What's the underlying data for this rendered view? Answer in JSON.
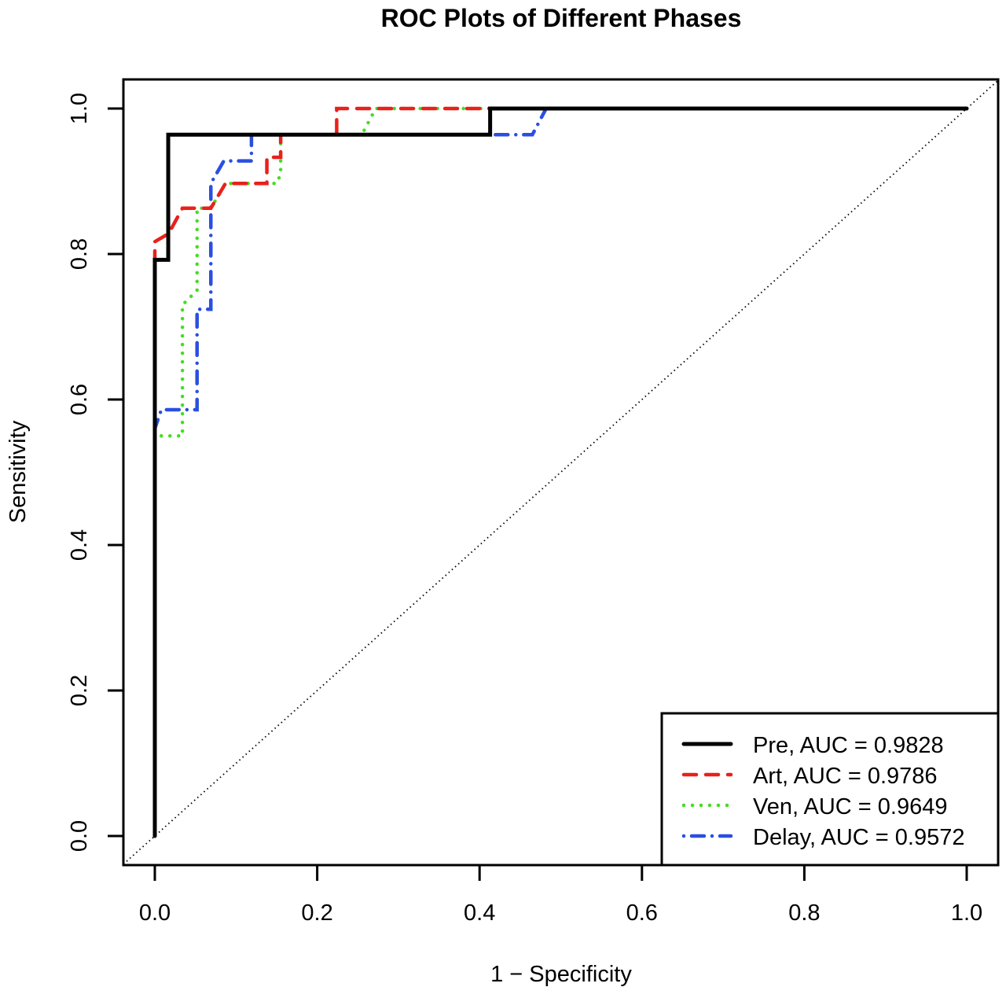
{
  "chart_data": {
    "type": "line",
    "title": "ROC Plots of Different Phases",
    "xlabel": "1 − Specificity",
    "ylabel": "Sensitivity",
    "xlim": [
      0,
      1
    ],
    "ylim": [
      0,
      1
    ],
    "xticks": [
      "0.0",
      "0.2",
      "0.4",
      "0.6",
      "0.8",
      "1.0"
    ],
    "yticks": [
      "0.0",
      "0.2",
      "0.4",
      "0.6",
      "0.8",
      "1.0"
    ],
    "grid": false,
    "legend_position": "bottom-right",
    "reference_line": {
      "from": [
        0,
        0
      ],
      "to": [
        1,
        1
      ],
      "style": "dotted",
      "color": "#000000"
    },
    "series": [
      {
        "name": "Pre, AUC = 0.9828",
        "color": "#000000",
        "style": "solid",
        "x": [
          0,
          0,
          0.0165,
          0.0165,
          0.413,
          0.413,
          1
        ],
        "y": [
          0,
          0.792,
          0.792,
          0.964,
          0.964,
          1,
          1
        ]
      },
      {
        "name": "Art, AUC = 0.9786",
        "color": "#e8211b",
        "style": "dashed",
        "x": [
          0,
          0,
          0.017,
          0.034,
          0.069,
          0.087,
          0.138,
          0.138,
          0.155,
          0.155,
          0.224,
          0.224,
          1
        ],
        "y": [
          0,
          0.817,
          0.828,
          0.863,
          0.863,
          0.897,
          0.897,
          0.933,
          0.933,
          0.964,
          0.964,
          1,
          1
        ]
      },
      {
        "name": "Ven, AUC = 0.9649",
        "color": "#44dd22",
        "style": "dotted",
        "x": [
          0,
          0,
          0.034,
          0.034,
          0.052,
          0.052,
          0.069,
          0.087,
          0.15,
          0.155,
          0.155,
          0.255,
          0.272,
          1
        ],
        "y": [
          0,
          0.55,
          0.55,
          0.73,
          0.75,
          0.863,
          0.863,
          0.897,
          0.897,
          0.91,
          0.964,
          0.964,
          1,
          1
        ]
      },
      {
        "name": "Delay, AUC = 0.9572",
        "color": "#2a4fe0",
        "style": "dotdash",
        "x": [
          0,
          0,
          0.008,
          0.052,
          0.052,
          0.069,
          0.069,
          0.085,
          0.119,
          0.119,
          0.465,
          0.482,
          1
        ],
        "y": [
          0,
          0.56,
          0.586,
          0.586,
          0.724,
          0.724,
          0.897,
          0.928,
          0.928,
          0.964,
          0.964,
          1,
          1
        ]
      }
    ]
  }
}
